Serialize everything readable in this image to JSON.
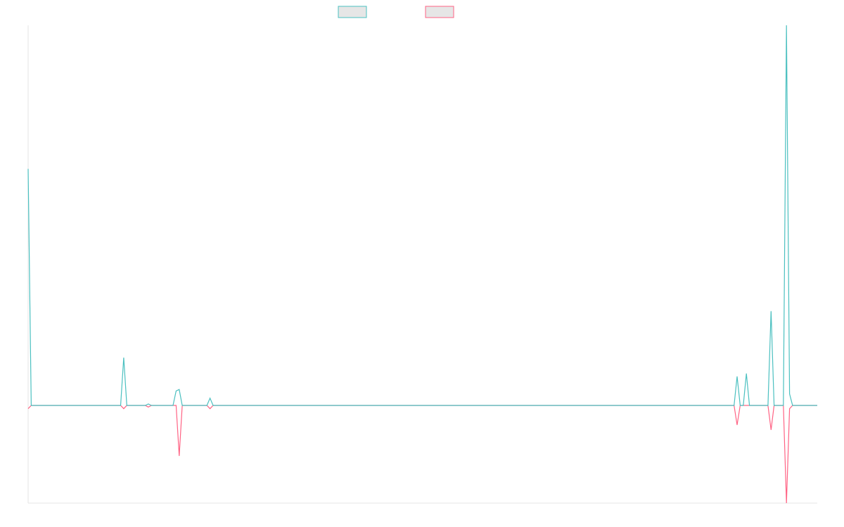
{
  "chart_data": {
    "type": "line",
    "title": "",
    "xlabel": "",
    "ylabel": "",
    "legend_position": "top-center",
    "grid": false,
    "ylim": [
      -100,
      196
    ],
    "x": [
      0,
      1,
      2,
      3,
      4,
      5,
      6,
      7,
      8,
      9,
      10,
      11,
      12,
      13,
      14,
      15,
      16,
      17,
      18,
      19,
      20,
      21,
      22,
      23,
      24,
      25,
      26,
      27,
      28,
      29,
      30,
      31,
      32,
      33,
      34,
      35,
      36,
      37,
      38,
      39,
      40,
      41,
      42,
      43,
      44,
      45,
      46,
      47,
      48,
      49,
      50,
      51,
      52,
      53,
      54,
      55,
      56,
      57,
      58,
      59,
      60,
      61,
      62,
      63,
      64,
      65,
      66,
      67,
      67,
      68,
      69,
      70,
      71,
      72,
      73,
      74,
      75,
      76,
      77,
      78,
      79,
      80,
      81,
      82,
      83,
      84,
      85,
      86,
      87,
      88,
      89,
      90,
      91,
      92,
      93,
      94,
      95,
      96,
      97,
      98,
      99,
      100,
      101,
      102,
      103,
      104,
      105,
      106,
      107,
      108,
      109,
      110,
      111,
      112,
      113,
      114,
      115,
      116,
      117,
      118,
      119,
      120,
      121,
      122,
      123,
      124,
      125,
      126,
      127,
      128,
      129,
      130,
      131,
      132,
      133,
      134,
      135,
      136,
      137,
      138,
      139,
      140,
      141,
      142,
      143,
      144,
      145,
      146,
      147,
      148,
      149,
      150,
      151,
      152,
      153,
      154,
      155,
      156,
      157,
      158,
      159,
      160,
      161,
      162,
      163,
      164,
      165,
      166,
      167,
      168,
      169,
      170,
      171,
      172,
      173,
      174,
      175,
      176,
      177,
      178,
      179,
      180,
      181,
      182,
      183,
      184,
      185,
      186,
      187,
      188,
      189,
      190,
      191,
      192,
      193,
      194,
      195,
      196,
      197,
      198,
      199,
      200,
      201,
      202,
      203,
      204,
      205,
      206,
      207,
      208,
      209,
      210,
      211,
      212,
      213,
      214,
      215,
      216,
      217,
      218,
      219,
      220,
      221,
      222,
      223,
      224,
      225,
      226,
      227,
      228,
      229,
      230,
      231,
      232,
      233,
      234,
      235,
      236,
      237,
      238,
      239,
      240,
      241,
      242,
      243,
      244,
      245,
      246,
      247,
      248,
      249,
      250,
      251,
      252,
      253,
      254,
      255
    ],
    "series": [
      {
        "color": "#4bc0c0",
        "points": [
          [
            0,
            163
          ],
          [
            1,
            0
          ],
          [
            30,
            0
          ],
          [
            31,
            33
          ],
          [
            32,
            0
          ],
          [
            38,
            0
          ],
          [
            39,
            1
          ],
          [
            40,
            0
          ],
          [
            47,
            0
          ],
          [
            48,
            10
          ],
          [
            49,
            11
          ],
          [
            50,
            0
          ],
          [
            58,
            0
          ],
          [
            59,
            5
          ],
          [
            60,
            0
          ],
          [
            229,
            0
          ],
          [
            230,
            20
          ],
          [
            231,
            0
          ],
          [
            232,
            0
          ],
          [
            233,
            22
          ],
          [
            234,
            0
          ],
          [
            240,
            0
          ],
          [
            241,
            65
          ],
          [
            242,
            0
          ],
          [
            245,
            0
          ],
          [
            246,
            262
          ],
          [
            247,
            8
          ],
          [
            248,
            0
          ],
          [
            256,
            0
          ]
        ]
      },
      {
        "color": "#ff6384",
        "points": [
          [
            0,
            -2
          ],
          [
            1,
            0
          ],
          [
            30,
            0
          ],
          [
            31,
            -2
          ],
          [
            32,
            0
          ],
          [
            38,
            0
          ],
          [
            39,
            -1
          ],
          [
            40,
            0
          ],
          [
            47,
            0
          ],
          [
            48,
            0
          ],
          [
            49,
            -31
          ],
          [
            50,
            0
          ],
          [
            58,
            0
          ],
          [
            59,
            -2
          ],
          [
            60,
            0
          ],
          [
            229,
            0
          ],
          [
            230,
            -12
          ],
          [
            231,
            0
          ],
          [
            240,
            0
          ],
          [
            241,
            -15
          ],
          [
            242,
            0
          ],
          [
            245,
            0
          ],
          [
            246,
            -60
          ],
          [
            247,
            -2
          ],
          [
            248,
            0
          ],
          [
            256,
            0
          ]
        ]
      }
    ]
  }
}
